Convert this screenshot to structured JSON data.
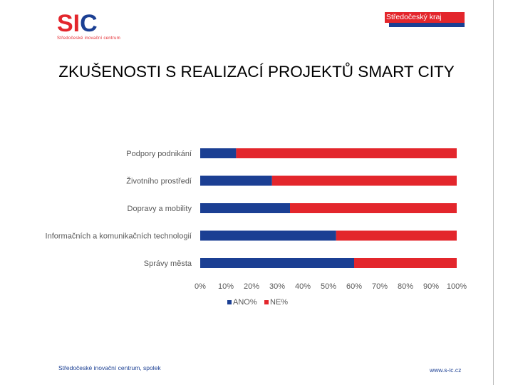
{
  "header": {
    "logo_letters_left": "SI",
    "logo_letters_right": "C",
    "logo_subtitle": "Středočeské inovační centrum",
    "region_badge": "Středočeský kraj"
  },
  "slide": {
    "title": "ZKUŠENOSTI S REALIZACÍ PROJEKTŮ SMART CITY"
  },
  "chart_data": {
    "type": "bar",
    "orientation": "horizontal",
    "stacked": "percent",
    "categories": [
      "Podpory podnikání",
      "Životního prostředí",
      "Dopravy a mobility",
      "Informačních a komunikačních technologií",
      "Správy města"
    ],
    "series": [
      {
        "name": "ANO%",
        "color": "#1b3f93",
        "values": [
          14,
          28,
          35,
          53,
          60
        ]
      },
      {
        "name": "NE%",
        "color": "#e3262c",
        "values": [
          86,
          72,
          65,
          47,
          40
        ]
      }
    ],
    "xlim": [
      0,
      100
    ],
    "x_ticks": [
      "0%",
      "10%",
      "20%",
      "30%",
      "40%",
      "50%",
      "60%",
      "70%",
      "80%",
      "90%",
      "100%"
    ],
    "legend_position": "bottom",
    "grid": false
  },
  "footer": {
    "organization": "Středočeské inovační centrum, spolek",
    "website": "www.s-ic.cz"
  }
}
